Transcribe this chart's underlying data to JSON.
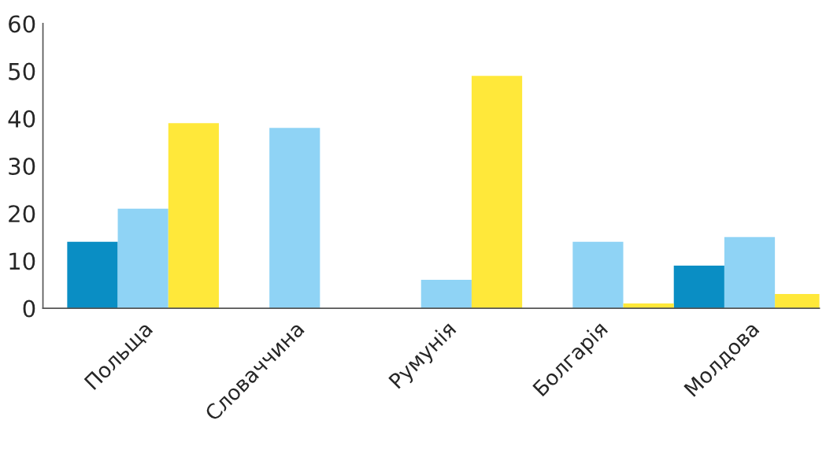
{
  "chart_data": {
    "type": "bar",
    "categories": [
      "Польща",
      "Словаччина",
      "Румунія",
      "Болгарія",
      "Молдова"
    ],
    "series": [
      {
        "color": "#0a8ec4",
        "values": [
          14,
          null,
          null,
          null,
          9
        ]
      },
      {
        "color": "#8fd3f5",
        "values": [
          21,
          38,
          6,
          14,
          15
        ]
      },
      {
        "color": "#ffe83a",
        "values": [
          39,
          null,
          49,
          1,
          3
        ]
      }
    ],
    "ylim": [
      0,
      60
    ],
    "yticks": [
      0,
      10,
      20,
      30,
      40,
      50,
      60
    ],
    "grid": false,
    "legend": false
  }
}
